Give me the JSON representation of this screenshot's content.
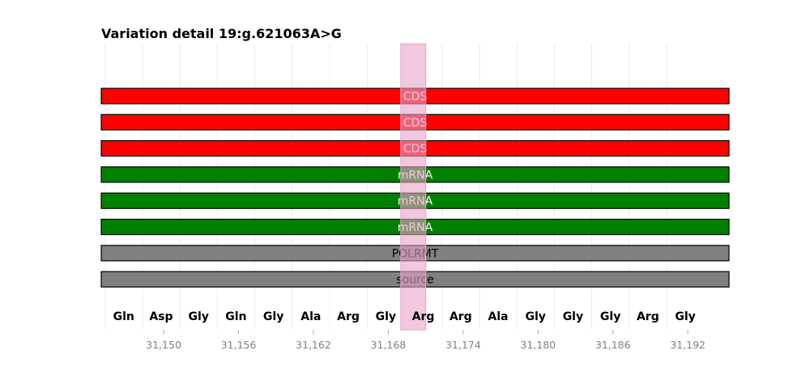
{
  "chart_data": {
    "type": "bar",
    "title": "Variation detail 19:g.621063A>G",
    "xlim": [
      31145,
      31195.3
    ],
    "highlight": {
      "from": 31169.0,
      "to": 31171.0,
      "color": "#e7a3c6"
    },
    "features": [
      {
        "label": "CDS",
        "color": "#ff0000",
        "text_color": "#ffffff"
      },
      {
        "label": "CDS",
        "color": "#ff0000",
        "text_color": "#ffffff"
      },
      {
        "label": "CDS",
        "color": "#ff0000",
        "text_color": "#ffffff"
      },
      {
        "label": "mRNA",
        "color": "#008000",
        "text_color": "#ffffff"
      },
      {
        "label": "mRNA",
        "color": "#008000",
        "text_color": "#ffffff"
      },
      {
        "label": "mRNA",
        "color": "#008000",
        "text_color": "#ffffff"
      },
      {
        "label": "POLRMT",
        "color": "#808080",
        "text_color": "#000000"
      },
      {
        "label": "source",
        "color": "#808080",
        "text_color": "#000000"
      }
    ],
    "amino_acids": [
      "Gln",
      "Asp",
      "Gly",
      "Gln",
      "Gly",
      "Ala",
      "Arg",
      "Gly",
      "Arg",
      "Arg",
      "Ala",
      "Gly",
      "Gly",
      "Gly",
      "Arg",
      "Gly"
    ],
    "codon_start": 31145.3,
    "codon_length": 3,
    "x_ticks": [
      31150,
      31156,
      31162,
      31168,
      31174,
      31180,
      31186,
      31192
    ],
    "x_tick_labels": [
      "31,150",
      "31,156",
      "31,162",
      "31,168",
      "31,174",
      "31,180",
      "31,186",
      "31,192"
    ],
    "grid": true
  }
}
